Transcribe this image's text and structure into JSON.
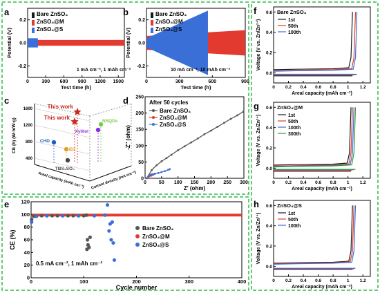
{
  "chart_data": [
    {
      "panel": "a",
      "type": "line",
      "xlabel": "Test time (h)",
      "ylabel": "Potential (V)",
      "xlim": [
        0,
        1600
      ],
      "ylim": [
        -0.3,
        0.3
      ],
      "xticks": [
        0,
        300,
        600,
        900,
        1200,
        1500
      ],
      "yticks": [
        -0.2,
        0.0,
        0.2
      ],
      "annotation": "1 mA cm⁻², 1 mAh cm⁻²",
      "series": [
        {
          "name": "Bare ZnSO₄",
          "color": "#1a1a1a",
          "end": 100,
          "amp": 0.03
        },
        {
          "name": "ZnSO₄@M",
          "color": "#e23a2e",
          "end": 1600,
          "amp": 0.025
        },
        {
          "name": "ZnSO₄@S",
          "color": "#3a6fd8",
          "end": 170,
          "amp": 0.04
        }
      ]
    },
    {
      "panel": "b",
      "type": "line",
      "xlabel": "Test time (h)",
      "ylabel": "Potential (V)",
      "xlim": [
        0,
        900
      ],
      "ylim": [
        -0.3,
        0.3
      ],
      "xticks": [
        0,
        300,
        600,
        900
      ],
      "yticks": [
        -0.2,
        0.0,
        0.2
      ],
      "annotation": "10 mA cm⁻², 10 mAh cm⁻²",
      "series": [
        {
          "name": "Bare ZnSO₄",
          "color": "#1a1a1a",
          "end": 80,
          "amp": 0.04
        },
        {
          "name": "ZnSO₄@M",
          "color": "#e23a2e",
          "end": 900,
          "amp_start": 0.06,
          "amp_end": 0.11
        },
        {
          "name": "ZnSO₄@S",
          "color": "#3a6fd8",
          "end": 560,
          "amp_start": 0.04,
          "amp_end": 0.28
        }
      ]
    },
    {
      "panel": "c",
      "type": "scatter",
      "ylabel": "CE (h) (W·h/W·g)",
      "axis_left": "Areal capacity (mAh cm⁻²)",
      "axis_right": "Current density (mA cm⁻²)",
      "ytick_labels": [
        "1600",
        "1200",
        "800",
        "400"
      ],
      "points": [
        {
          "label": "This work",
          "color": "#c8281f",
          "highlight": true
        },
        {
          "label": "This work",
          "color": "#c8281f",
          "highlight": true
        },
        {
          "label": "NSQDs",
          "color": "#7ac943",
          "highlight": false
        },
        {
          "label": "Xylitol",
          "color": "#8a2be2",
          "highlight": false
        },
        {
          "label": "CHD",
          "color": "#1d5fbf",
          "highlight": false
        },
        {
          "label": "EG",
          "color": "#e0a020",
          "highlight": false
        },
        {
          "label": "TBS₂SO₄",
          "color": "#444444",
          "highlight": false
        }
      ]
    },
    {
      "panel": "d",
      "type": "line",
      "title": "After 50 cycles",
      "xlabel": "Z' (ohm)",
      "ylabel": "-Z'' (ohm)",
      "xlim": [
        0,
        300
      ],
      "ylim": [
        0,
        250
      ],
      "xticks": [
        0,
        50,
        100,
        150,
        200,
        250,
        300
      ],
      "yticks": [
        0,
        50,
        100,
        150,
        200,
        250
      ],
      "series": [
        {
          "name": "Bare ZnSO₄",
          "color": "#555555",
          "marker": "circle",
          "x": [
            5,
            20,
            35,
            50,
            65,
            80,
            100,
            120,
            140,
            160,
            180,
            200,
            220,
            240,
            260,
            280,
            298
          ],
          "y": [
            0,
            25,
            40,
            52,
            62,
            72,
            86,
            98,
            110,
            122,
            135,
            146,
            158,
            170,
            182,
            193,
            204
          ]
        },
        {
          "name": "ZnSO₄@M",
          "color": "#e23a2e",
          "marker": "circle",
          "x": [
            5,
            8,
            12,
            15,
            18,
            20,
            25,
            30
          ],
          "y": [
            0,
            3,
            6,
            8,
            8,
            9,
            11,
            14
          ]
        },
        {
          "name": "ZnSO₄@S",
          "color": "#3a6fd8",
          "marker": "circle",
          "x": [
            5,
            10,
            15,
            20,
            25,
            30,
            40,
            50,
            60,
            70,
            75
          ],
          "y": [
            0,
            6,
            10,
            12,
            13,
            14,
            16,
            19,
            22,
            26,
            28
          ]
        }
      ]
    },
    {
      "panel": "e",
      "type": "scatter",
      "xlabel": "Cycle number",
      "ylabel": "CE (%)",
      "xlim": [
        0,
        400
      ],
      "ylim": [
        0,
        120
      ],
      "xticks": [
        0,
        100,
        200,
        300,
        400
      ],
      "yticks": [
        0,
        20,
        40,
        60,
        80,
        100,
        120
      ],
      "annotation": "0.5 mA cm⁻², 1 mAh cm⁻²",
      "series": [
        {
          "name": "Bare ZnSO₄",
          "color": "#555555",
          "x": [
            1,
            5,
            10,
            20,
            30,
            40,
            50,
            60,
            70,
            80,
            90,
            100,
            105,
            106,
            107,
            108,
            110,
            112
          ],
          "y": [
            92,
            97,
            97,
            98,
            98,
            98,
            98,
            98,
            98,
            98,
            98,
            98,
            99,
            45,
            60,
            52,
            48,
            64
          ]
        },
        {
          "name": "ZnSO₄@M",
          "color": "#e23a2e",
          "x_start": 1,
          "x_end": 400,
          "y_value": 99
        },
        {
          "name": "ZnSO₄@S",
          "color": "#3a6fd8",
          "x": [
            1,
            10,
            30,
            60,
            90,
            120,
            140,
            145,
            148,
            150,
            152,
            154,
            156,
            158
          ],
          "y": [
            88,
            97,
            98,
            98,
            98,
            98,
            99,
            115,
            74,
            85,
            60,
            88,
            55,
            28
          ]
        }
      ]
    },
    {
      "panel": "f",
      "type": "line",
      "title": "Bare ZnSO₄",
      "xlabel": "Areal capacity (mAh cm⁻²)",
      "ylabel": "Voltage (V vs. Zn/Zn²⁺)",
      "xlim": [
        0,
        1.3
      ],
      "ylim": [
        -0.1,
        0.65
      ],
      "xticks": [
        0.0,
        0.2,
        0.4,
        0.6,
        0.8,
        1.0,
        1.2
      ],
      "yticks": [
        0.0,
        0.2,
        0.4,
        0.6
      ],
      "series": [
        {
          "name": "1st",
          "color": "#1a1a1a",
          "plateau": 0.03,
          "end": 1.06
        },
        {
          "name": "50th",
          "color": "#e23a2e",
          "plateau": 0.02,
          "end": 1.1
        },
        {
          "name": "100th",
          "color": "#3a6fd8",
          "plateau": 0.015,
          "end": 1.12
        }
      ]
    },
    {
      "panel": "g",
      "type": "line",
      "title": "ZnSO₄@M",
      "xlabel": "Areal capacity (mAh cm⁻²)",
      "ylabel": "Voltage (V vs. Zn/Zn²⁺)",
      "xlim": [
        0,
        1.3
      ],
      "ylim": [
        -0.1,
        0.65
      ],
      "xticks": [
        0.0,
        0.2,
        0.4,
        0.6,
        0.8,
        1.0,
        1.2
      ],
      "yticks": [
        0.0,
        0.2,
        0.4,
        0.6
      ],
      "series": [
        {
          "name": "1st",
          "color": "#1a1a1a",
          "plateau": 0.03,
          "end": 1.04
        },
        {
          "name": "50th",
          "color": "#e23a2e",
          "plateau": 0.02,
          "end": 1.06
        },
        {
          "name": "100th",
          "color": "#3a6fd8",
          "plateau": 0.015,
          "end": 1.08
        },
        {
          "name": "300th",
          "color": "#2e9a3a",
          "plateau": 0.012,
          "end": 1.1
        }
      ]
    },
    {
      "panel": "h",
      "type": "line",
      "title": "ZnSO₄@S",
      "xlabel": "Areal capacity (mAh cm⁻²)",
      "ylabel": "Voltage (V vs. Zn/Zn²⁺)",
      "xlim": [
        0,
        1.3
      ],
      "ylim": [
        -0.1,
        0.65
      ],
      "xticks": [
        0.0,
        0.2,
        0.4,
        0.6,
        0.8,
        1.0,
        1.2
      ],
      "yticks": [
        0.0,
        0.2,
        0.4,
        0.6
      ],
      "series": [
        {
          "name": "1st",
          "color": "#1a1a1a",
          "plateau": 0.03,
          "end": 1.06
        },
        {
          "name": "50th",
          "color": "#e23a2e",
          "plateau": 0.025,
          "end": 1.08
        },
        {
          "name": "100th",
          "color": "#3a6fd8",
          "plateau": 0.02,
          "end": 1.1
        }
      ]
    }
  ]
}
